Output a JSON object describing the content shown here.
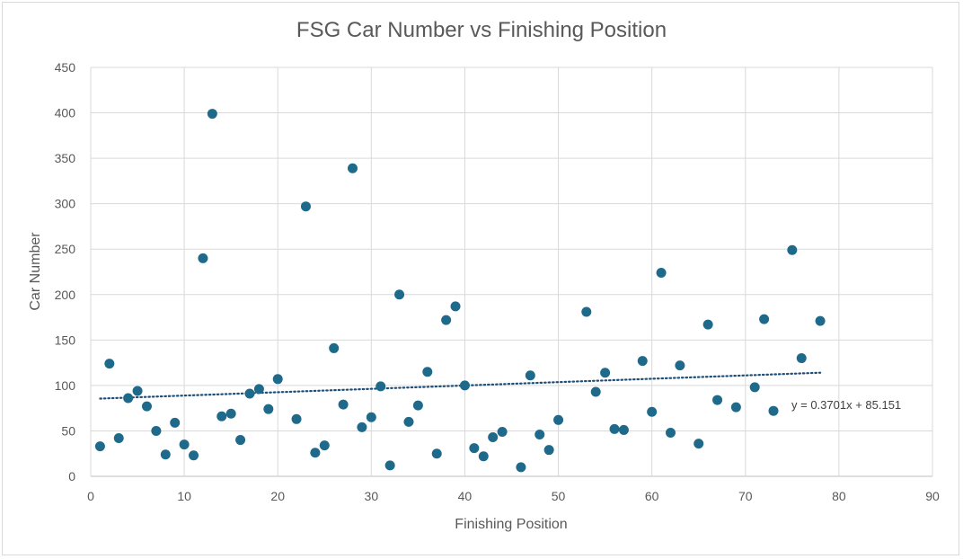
{
  "chart_data": {
    "type": "scatter",
    "title": "FSG Car Number vs Finishing Position",
    "xlabel": "Finishing Position",
    "ylabel": "Car Number",
    "xlim": [
      0,
      90
    ],
    "ylim": [
      0,
      450
    ],
    "x_ticks": [
      0,
      10,
      20,
      30,
      40,
      50,
      60,
      70,
      80,
      90
    ],
    "y_ticks": [
      0,
      50,
      100,
      150,
      200,
      250,
      300,
      350,
      400,
      450
    ],
    "grid": true,
    "legend": "none",
    "marker_color": "#1f6a8a",
    "trendline": {
      "style": "dotted",
      "color": "#1f4e79",
      "slope": 0.3701,
      "intercept": 85.151,
      "x_range": [
        1,
        78
      ],
      "label": "y = 0.3701x + 85.151"
    },
    "points": [
      [
        1,
        33
      ],
      [
        2,
        124
      ],
      [
        3,
        42
      ],
      [
        4,
        86
      ],
      [
        5,
        94
      ],
      [
        6,
        77
      ],
      [
        7,
        50
      ],
      [
        8,
        24
      ],
      [
        9,
        59
      ],
      [
        10,
        35
      ],
      [
        11,
        23
      ],
      [
        12,
        240
      ],
      [
        13,
        399
      ],
      [
        14,
        66
      ],
      [
        15,
        69
      ],
      [
        16,
        40
      ],
      [
        17,
        91
      ],
      [
        18,
        96
      ],
      [
        19,
        74
      ],
      [
        20,
        107
      ],
      [
        22,
        63
      ],
      [
        23,
        297
      ],
      [
        24,
        26
      ],
      [
        25,
        34
      ],
      [
        26,
        141
      ],
      [
        27,
        79
      ],
      [
        28,
        339
      ],
      [
        29,
        54
      ],
      [
        30,
        65
      ],
      [
        31,
        99
      ],
      [
        32,
        12
      ],
      [
        33,
        200
      ],
      [
        34,
        60
      ],
      [
        35,
        78
      ],
      [
        36,
        115
      ],
      [
        37,
        25
      ],
      [
        38,
        172
      ],
      [
        39,
        187
      ],
      [
        40,
        100
      ],
      [
        41,
        31
      ],
      [
        42,
        22
      ],
      [
        43,
        43
      ],
      [
        44,
        49
      ],
      [
        46,
        10
      ],
      [
        47,
        111
      ],
      [
        48,
        46
      ],
      [
        49,
        29
      ],
      [
        50,
        62
      ],
      [
        53,
        181
      ],
      [
        54,
        93
      ],
      [
        55,
        114
      ],
      [
        56,
        52
      ],
      [
        57,
        51
      ],
      [
        59,
        127
      ],
      [
        60,
        71
      ],
      [
        61,
        224
      ],
      [
        62,
        48
      ],
      [
        63,
        122
      ],
      [
        65,
        36
      ],
      [
        66,
        167
      ],
      [
        67,
        84
      ],
      [
        69,
        76
      ],
      [
        71,
        98
      ],
      [
        72,
        173
      ],
      [
        73,
        72
      ],
      [
        75,
        249
      ],
      [
        76,
        130
      ],
      [
        78,
        171
      ]
    ]
  }
}
